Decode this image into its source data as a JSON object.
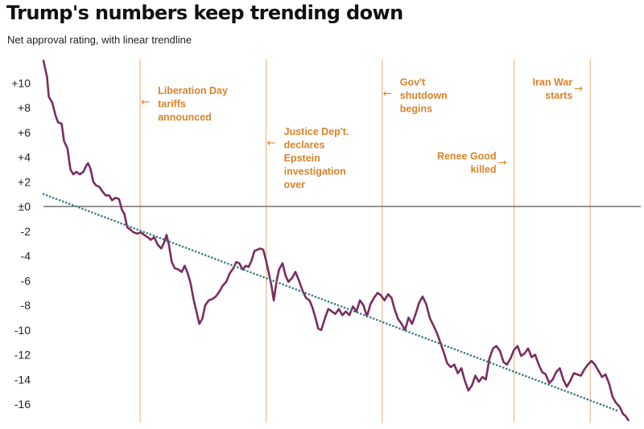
{
  "title": "Trump's numbers keep trending down",
  "subtitle": "Net approval rating, with linear trendline",
  "colors": {
    "series": "#7a2d5f",
    "trend": "#3e7c84",
    "event_line": "#e8b98c",
    "annotation": "#d9822b",
    "zero_line": "#555555",
    "text": "#111111"
  },
  "chart_data": {
    "type": "line",
    "title": "Trump's numbers keep trending down",
    "subtitle": "Net approval rating, with linear trendline",
    "xlabel": "",
    "ylabel": "",
    "ylim": [
      -17.3,
      12
    ],
    "xlim": [
      0,
      100
    ],
    "yticks": [
      {
        "value": 10,
        "label": "+10"
      },
      {
        "value": 8,
        "label": "+8"
      },
      {
        "value": 6,
        "label": "+6"
      },
      {
        "value": 4,
        "label": "+4"
      },
      {
        "value": 2,
        "label": "+2"
      },
      {
        "value": 0,
        "label": "±0"
      },
      {
        "value": -2,
        "label": "-2"
      },
      {
        "value": -4,
        "label": "-4"
      },
      {
        "value": -6,
        "label": "-6"
      },
      {
        "value": -8,
        "label": "-8"
      },
      {
        "value": -10,
        "label": "-10"
      },
      {
        "value": -12,
        "label": "-12"
      },
      {
        "value": -14,
        "label": "-14"
      },
      {
        "value": -16,
        "label": "-16"
      }
    ],
    "grid": false,
    "legend": "none",
    "series": [
      {
        "style": "solid",
        "points": [
          [
            0,
            11.8
          ],
          [
            0.6,
            10.5
          ],
          [
            0.9,
            8.9
          ],
          [
            1.5,
            8.4
          ],
          [
            2.1,
            7.3
          ],
          [
            2.5,
            6.8
          ],
          [
            3.1,
            6.7
          ],
          [
            3.5,
            5.3
          ],
          [
            4.1,
            4.7
          ],
          [
            4.6,
            3.0
          ],
          [
            5.1,
            2.6
          ],
          [
            5.6,
            2.8
          ],
          [
            6.2,
            2.6
          ],
          [
            6.8,
            2.8
          ],
          [
            7.3,
            3.3
          ],
          [
            7.6,
            3.5
          ],
          [
            8.0,
            3.1
          ],
          [
            8.5,
            2.0
          ],
          [
            9.0,
            1.7
          ],
          [
            9.5,
            1.6
          ],
          [
            10.1,
            1.2
          ],
          [
            10.6,
            0.9
          ],
          [
            11.2,
            0.9
          ],
          [
            11.7,
            0.5
          ],
          [
            12.3,
            0.7
          ],
          [
            12.9,
            0.6
          ],
          [
            13.4,
            -0.3
          ],
          [
            13.8,
            -0.6
          ],
          [
            14.3,
            -1.7
          ],
          [
            14.9,
            -1.9
          ],
          [
            15.4,
            -2.1
          ],
          [
            16.0,
            -2.2
          ],
          [
            16.6,
            -2.1
          ],
          [
            17.2,
            -2.3
          ],
          [
            17.8,
            -2.5
          ],
          [
            18.3,
            -2.7
          ],
          [
            18.9,
            -2.5
          ],
          [
            19.5,
            -3.1
          ],
          [
            20.1,
            -3.4
          ],
          [
            20.6,
            -2.9
          ],
          [
            21.0,
            -2.3
          ],
          [
            21.4,
            -3.1
          ],
          [
            21.9,
            -4.5
          ],
          [
            22.4,
            -5.0
          ],
          [
            23.0,
            -5.1
          ],
          [
            23.6,
            -5.3
          ],
          [
            24.1,
            -4.8
          ],
          [
            24.6,
            -5.4
          ],
          [
            25.1,
            -6.2
          ],
          [
            25.6,
            -7.5
          ],
          [
            26.1,
            -8.5
          ],
          [
            26.6,
            -9.5
          ],
          [
            27.1,
            -9.1
          ],
          [
            27.6,
            -8.0
          ],
          [
            28.2,
            -7.6
          ],
          [
            28.8,
            -7.5
          ],
          [
            29.4,
            -7.3
          ],
          [
            30.0,
            -6.9
          ],
          [
            30.6,
            -6.4
          ],
          [
            31.2,
            -6.1
          ],
          [
            31.8,
            -5.4
          ],
          [
            32.4,
            -5.0
          ],
          [
            32.9,
            -4.5
          ],
          [
            33.4,
            -4.6
          ],
          [
            34.0,
            -5.1
          ],
          [
            34.5,
            -4.8
          ],
          [
            35.0,
            -4.9
          ],
          [
            35.5,
            -4.4
          ],
          [
            36.0,
            -3.6
          ],
          [
            36.5,
            -3.5
          ],
          [
            37.0,
            -3.4
          ],
          [
            37.5,
            -3.5
          ],
          [
            38.0,
            -4.4
          ],
          [
            38.4,
            -5.3
          ],
          [
            38.9,
            -6.4
          ],
          [
            39.3,
            -7.6
          ],
          [
            39.8,
            -6.0
          ],
          [
            40.2,
            -5.1
          ],
          [
            40.8,
            -4.6
          ],
          [
            41.3,
            -5.6
          ],
          [
            41.8,
            -6.1
          ],
          [
            42.4,
            -5.8
          ],
          [
            43.0,
            -5.3
          ],
          [
            43.6,
            -6.0
          ],
          [
            44.2,
            -6.8
          ],
          [
            44.8,
            -7.4
          ],
          [
            45.4,
            -7.6
          ],
          [
            45.9,
            -8.2
          ],
          [
            46.4,
            -9.0
          ],
          [
            46.9,
            -9.9
          ],
          [
            47.4,
            -10.0
          ],
          [
            48.0,
            -9.1
          ],
          [
            48.6,
            -8.3
          ],
          [
            49.2,
            -8.5
          ],
          [
            49.8,
            -8.7
          ],
          [
            50.4,
            -8.3
          ],
          [
            51.0,
            -8.8
          ],
          [
            51.6,
            -8.5
          ],
          [
            52.2,
            -8.8
          ],
          [
            52.8,
            -8.1
          ],
          [
            53.4,
            -8.5
          ],
          [
            54.0,
            -7.6
          ],
          [
            54.6,
            -8.0
          ],
          [
            55.2,
            -8.9
          ],
          [
            55.8,
            -7.9
          ],
          [
            56.4,
            -7.4
          ],
          [
            57.0,
            -7.0
          ],
          [
            57.6,
            -7.2
          ],
          [
            58.2,
            -7.6
          ],
          [
            58.8,
            -7.1
          ],
          [
            59.4,
            -7.4
          ],
          [
            59.9,
            -8.3
          ],
          [
            60.5,
            -9.1
          ],
          [
            61.1,
            -9.5
          ],
          [
            61.7,
            -10.0
          ],
          [
            62.3,
            -9.0
          ],
          [
            62.9,
            -9.5
          ],
          [
            63.5,
            -8.7
          ],
          [
            64.1,
            -7.8
          ],
          [
            64.7,
            -7.3
          ],
          [
            65.3,
            -7.9
          ],
          [
            65.9,
            -9.0
          ],
          [
            66.5,
            -9.6
          ],
          [
            67.1,
            -10.2
          ],
          [
            67.7,
            -11.0
          ],
          [
            68.3,
            -11.8
          ],
          [
            68.9,
            -12.7
          ],
          [
            69.5,
            -13.0
          ],
          [
            70.1,
            -12.8
          ],
          [
            70.7,
            -13.5
          ],
          [
            71.3,
            -13.1
          ],
          [
            71.9,
            -14.1
          ],
          [
            72.5,
            -14.9
          ],
          [
            73.1,
            -14.5
          ],
          [
            73.7,
            -13.7
          ],
          [
            74.3,
            -14.2
          ],
          [
            74.9,
            -13.8
          ],
          [
            75.5,
            -14.0
          ],
          [
            76.1,
            -12.3
          ],
          [
            76.7,
            -11.5
          ],
          [
            77.3,
            -11.3
          ],
          [
            77.9,
            -11.7
          ],
          [
            78.5,
            -12.6
          ],
          [
            79.1,
            -12.8
          ],
          [
            79.7,
            -12.3
          ],
          [
            80.3,
            -11.6
          ],
          [
            80.9,
            -11.3
          ],
          [
            81.5,
            -12.1
          ],
          [
            82.1,
            -11.9
          ],
          [
            82.7,
            -11.5
          ],
          [
            83.3,
            -12.2
          ],
          [
            83.9,
            -12.0
          ],
          [
            84.5,
            -12.8
          ],
          [
            85.1,
            -13.4
          ],
          [
            85.7,
            -13.6
          ],
          [
            86.3,
            -14.3
          ],
          [
            86.9,
            -14.0
          ],
          [
            87.5,
            -13.4
          ],
          [
            88.1,
            -13.1
          ],
          [
            88.7,
            -14.0
          ],
          [
            89.3,
            -14.6
          ],
          [
            89.9,
            -14.1
          ],
          [
            90.5,
            -13.5
          ],
          [
            91.1,
            -13.6
          ],
          [
            91.7,
            -13.7
          ],
          [
            92.3,
            -13.2
          ],
          [
            92.9,
            -12.8
          ],
          [
            93.5,
            -12.5
          ],
          [
            94.1,
            -12.8
          ],
          [
            94.7,
            -13.3
          ],
          [
            95.3,
            -13.8
          ],
          [
            95.9,
            -13.6
          ],
          [
            96.5,
            -14.3
          ],
          [
            97.1,
            -15.4
          ],
          [
            97.7,
            -15.9
          ],
          [
            98.3,
            -16.2
          ],
          [
            98.9,
            -16.8
          ],
          [
            99.4,
            -17.0
          ],
          [
            99.8,
            -17.3
          ]
        ]
      },
      {
        "style": "dotted",
        "points": [
          [
            0,
            1.0
          ],
          [
            98.3,
            -16.6
          ]
        ]
      }
    ],
    "events": [
      {
        "x": 16.5,
        "text": "Liberation Day\ntariffs\nannounced",
        "label_y": 9.1,
        "arrow_side": "left"
      },
      {
        "x": 38.0,
        "text": "Justice Dep't.\ndeclares\nEpstein\ninvestigation\nover",
        "label_y": 5.8,
        "arrow_side": "left"
      },
      {
        "x": 57.8,
        "text": "Gov't\nshutdown\nbegins",
        "label_y": 9.8,
        "arrow_side": "left"
      },
      {
        "x": 80.3,
        "text": "Renee Good\nkilled",
        "label_y": 3.8,
        "arrow_side": "right"
      },
      {
        "x": 93.3,
        "text": "Iran War\nstarts",
        "label_y": 9.8,
        "arrow_side": "right"
      }
    ]
  }
}
